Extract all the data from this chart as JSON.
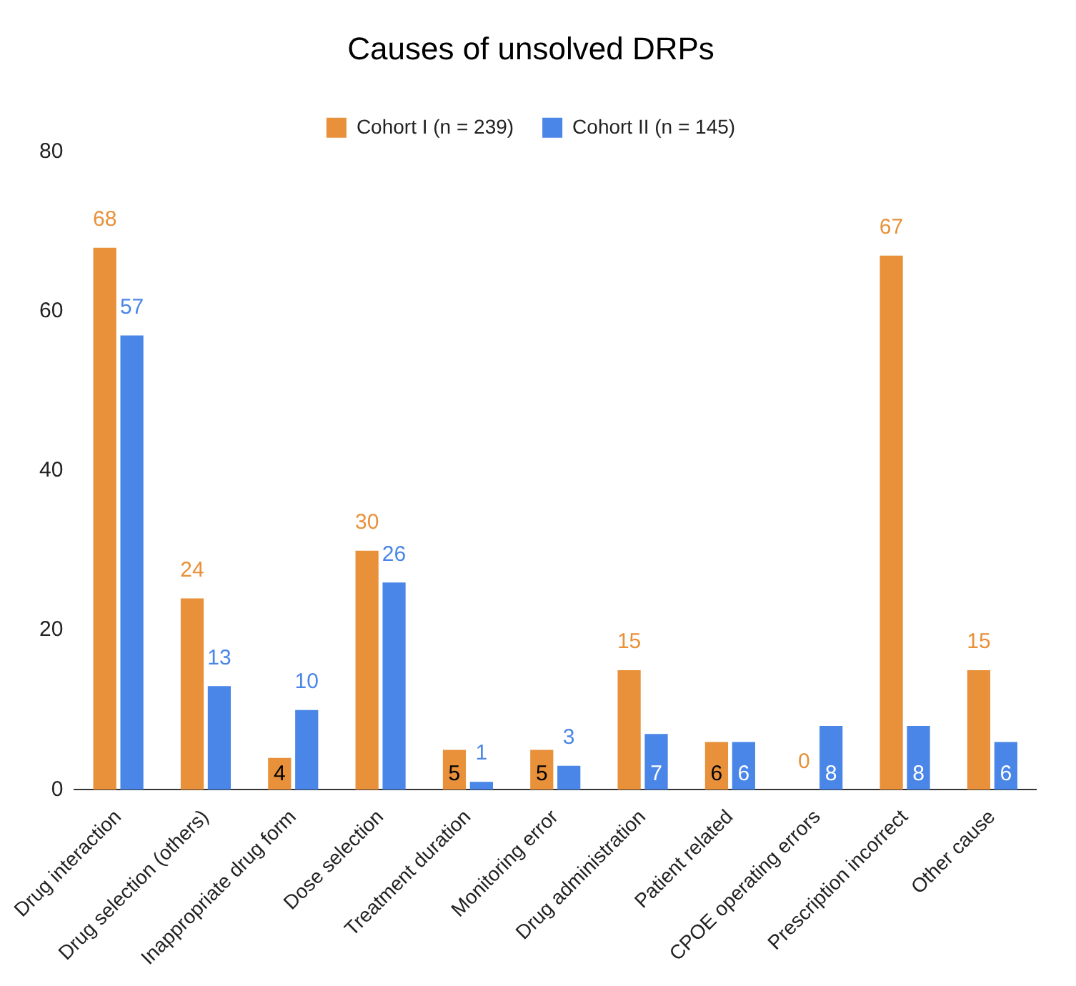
{
  "chart_data": {
    "type": "bar",
    "title": "Causes of unsolved DRPs",
    "categories": [
      "Drug interaction",
      "Drug selection (others)",
      "Inappropriate drug form",
      "Dose selection",
      "Treatment duration",
      "Monitoring error",
      "Drug administration",
      "Patient related",
      "CPOE operating errors",
      "Prescription incorrect",
      "Other cause"
    ],
    "series": [
      {
        "name": "Cohort I (n = 239)",
        "color": "#e8913a",
        "values": [
          68,
          24,
          4,
          30,
          5,
          5,
          15,
          6,
          0,
          67,
          15
        ]
      },
      {
        "name": "Cohort II (n = 145)",
        "color": "#4a86e8",
        "values": [
          57,
          13,
          10,
          26,
          1,
          3,
          7,
          6,
          8,
          8,
          6
        ]
      }
    ],
    "ylim": [
      0,
      80
    ],
    "yticks": [
      0,
      20,
      40,
      60,
      80
    ],
    "grid": false,
    "legend": "top",
    "data_labels": true
  }
}
